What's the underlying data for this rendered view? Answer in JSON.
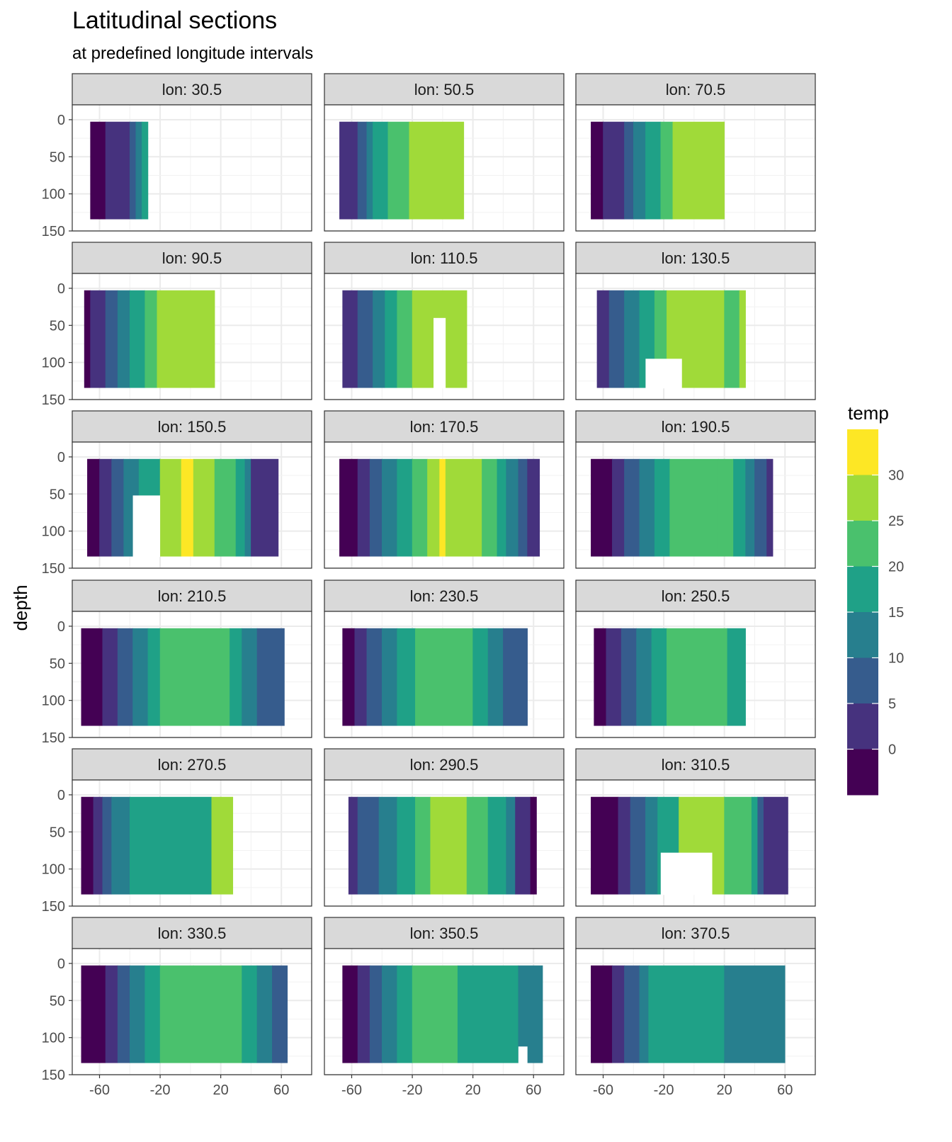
{
  "chart_data": {
    "type": "heatmap",
    "title": "Latitudinal sections",
    "subtitle": "at predefined longitude intervals",
    "xlabel": "",
    "ylabel": "depth",
    "x_ticks": [
      -60,
      -20,
      20,
      60
    ],
    "y_ticks": [
      0,
      50,
      100,
      150
    ],
    "xlim": [
      -78,
      80
    ],
    "ylim": [
      150,
      -20
    ],
    "legend": {
      "title": "temp",
      "breaks": [
        30,
        25,
        20,
        15,
        10,
        5,
        0
      ],
      "colors": [
        "#fde725",
        "#a0da39",
        "#4ac16d",
        "#1fa187",
        "#277f8e",
        "#365c8d",
        "#46327e",
        "#440154"
      ]
    },
    "panels": [
      {
        "label": "lon: 30.5",
        "lat_range": [
          -66,
          -28
        ],
        "depth_max": 134,
        "columns": [
          {
            "x": -66,
            "c": 7
          },
          {
            "x": -56,
            "c": 6
          },
          {
            "x": -40,
            "c": 5
          },
          {
            "x": -36,
            "c": 4
          },
          {
            "x": -32,
            "c": 3
          }
        ]
      },
      {
        "label": "lon: 50.5",
        "lat_range": [
          -68,
          14
        ],
        "depth_max": 134,
        "columns": [
          {
            "x": -68,
            "c": 6
          },
          {
            "x": -56,
            "c": 5
          },
          {
            "x": -50,
            "c": 4
          },
          {
            "x": -46,
            "c": 3
          },
          {
            "x": -36,
            "c": 2
          },
          {
            "x": -22,
            "c": 1
          }
        ]
      },
      {
        "label": "lon: 70.5",
        "lat_range": [
          -68,
          20
        ],
        "depth_max": 134,
        "columns": [
          {
            "x": -68,
            "c": 7
          },
          {
            "x": -60,
            "c": 6
          },
          {
            "x": -46,
            "c": 5
          },
          {
            "x": -40,
            "c": 4
          },
          {
            "x": -32,
            "c": 3
          },
          {
            "x": -22,
            "c": 2
          },
          {
            "x": -14,
            "c": 1
          }
        ]
      },
      {
        "label": "lon: 90.5",
        "lat_range": [
          -70,
          16
        ],
        "depth_max": 134,
        "columns": [
          {
            "x": -70,
            "c": 7
          },
          {
            "x": -66,
            "c": 6
          },
          {
            "x": -56,
            "c": 5
          },
          {
            "x": -48,
            "c": 4
          },
          {
            "x": -40,
            "c": 3
          },
          {
            "x": -30,
            "c": 2
          },
          {
            "x": -22,
            "c": 1
          }
        ]
      },
      {
        "label": "lon: 110.5",
        "lat_range": [
          -66,
          16
        ],
        "depth_max": 134,
        "columns": [
          {
            "x": -66,
            "c": 6
          },
          {
            "x": -56,
            "c": 5
          },
          {
            "x": -46,
            "c": 4
          },
          {
            "x": -38,
            "c": 3
          },
          {
            "x": -30,
            "c": 2
          },
          {
            "x": -20,
            "c": 1
          }
        ],
        "blank": {
          "lat": [
            -6,
            2
          ],
          "depth": [
            40,
            134
          ]
        }
      },
      {
        "label": "lon: 130.5",
        "lat_range": [
          -64,
          34
        ],
        "depth_max": 134,
        "columns": [
          {
            "x": -64,
            "c": 6
          },
          {
            "x": -56,
            "c": 5
          },
          {
            "x": -46,
            "c": 4
          },
          {
            "x": -36,
            "c": 3
          },
          {
            "x": -26,
            "c": 2
          },
          {
            "x": -18,
            "c": 1
          },
          {
            "x": 20,
            "c": 2
          },
          {
            "x": 30,
            "c": 1
          }
        ],
        "blank": {
          "lat": [
            -32,
            -8
          ],
          "depth": [
            95,
            134
          ]
        }
      },
      {
        "label": "lon: 150.5",
        "lat_range": [
          -68,
          58
        ],
        "depth_max": 134,
        "columns": [
          {
            "x": -68,
            "c": 7
          },
          {
            "x": -60,
            "c": 6
          },
          {
            "x": -52,
            "c": 5
          },
          {
            "x": -44,
            "c": 4
          },
          {
            "x": -34,
            "c": 3
          },
          {
            "x": -20,
            "c": 1
          },
          {
            "x": -6,
            "c": 0
          },
          {
            "x": 2,
            "c": 1
          },
          {
            "x": 16,
            "c": 2
          },
          {
            "x": 30,
            "c": 3
          },
          {
            "x": 36,
            "c": 4
          },
          {
            "x": 40,
            "c": 6
          }
        ],
        "blank": {
          "lat": [
            -38,
            -20
          ],
          "depth": [
            52,
            134
          ]
        }
      },
      {
        "label": "lon: 170.5",
        "lat_range": [
          -68,
          64
        ],
        "depth_max": 134,
        "columns": [
          {
            "x": -68,
            "c": 7
          },
          {
            "x": -56,
            "c": 6
          },
          {
            "x": -48,
            "c": 5
          },
          {
            "x": -40,
            "c": 4
          },
          {
            "x": -30,
            "c": 3
          },
          {
            "x": -20,
            "c": 2
          },
          {
            "x": -10,
            "c": 1
          },
          {
            "x": -2,
            "c": 0
          },
          {
            "x": 2,
            "c": 1
          },
          {
            "x": 26,
            "c": 2
          },
          {
            "x": 36,
            "c": 3
          },
          {
            "x": 42,
            "c": 4
          },
          {
            "x": 50,
            "c": 5
          },
          {
            "x": 56,
            "c": 6
          }
        ]
      },
      {
        "label": "lon: 190.5",
        "lat_range": [
          -68,
          52
        ],
        "depth_max": 134,
        "columns": [
          {
            "x": -68,
            "c": 7
          },
          {
            "x": -54,
            "c": 6
          },
          {
            "x": -46,
            "c": 5
          },
          {
            "x": -36,
            "c": 4
          },
          {
            "x": -26,
            "c": 3
          },
          {
            "x": -16,
            "c": 2
          },
          {
            "x": 16,
            "c": 2
          },
          {
            "x": 26,
            "c": 3
          },
          {
            "x": 34,
            "c": 4
          },
          {
            "x": 40,
            "c": 5
          },
          {
            "x": 48,
            "c": 6
          }
        ]
      },
      {
        "label": "lon: 210.5",
        "lat_range": [
          -72,
          62
        ],
        "depth_max": 134,
        "columns": [
          {
            "x": -72,
            "c": 7
          },
          {
            "x": -58,
            "c": 6
          },
          {
            "x": -48,
            "c": 5
          },
          {
            "x": -38,
            "c": 4
          },
          {
            "x": -28,
            "c": 3
          },
          {
            "x": -20,
            "c": 2
          },
          {
            "x": 26,
            "c": 3
          },
          {
            "x": 34,
            "c": 4
          },
          {
            "x": 44,
            "c": 5
          }
        ]
      },
      {
        "label": "lon: 230.5",
        "lat_range": [
          -66,
          56
        ],
        "depth_max": 134,
        "columns": [
          {
            "x": -66,
            "c": 7
          },
          {
            "x": -58,
            "c": 6
          },
          {
            "x": -50,
            "c": 5
          },
          {
            "x": -40,
            "c": 4
          },
          {
            "x": -30,
            "c": 3
          },
          {
            "x": -18,
            "c": 2
          },
          {
            "x": 20,
            "c": 3
          },
          {
            "x": 30,
            "c": 4
          },
          {
            "x": 40,
            "c": 5
          }
        ]
      },
      {
        "label": "lon: 250.5",
        "lat_range": [
          -66,
          34
        ],
        "depth_max": 134,
        "columns": [
          {
            "x": -66,
            "c": 7
          },
          {
            "x": -58,
            "c": 6
          },
          {
            "x": -48,
            "c": 5
          },
          {
            "x": -38,
            "c": 4
          },
          {
            "x": -28,
            "c": 3
          },
          {
            "x": -18,
            "c": 2
          },
          {
            "x": 22,
            "c": 3
          }
        ]
      },
      {
        "label": "lon: 270.5",
        "lat_range": [
          -72,
          28
        ],
        "depth_max": 134,
        "columns": [
          {
            "x": -72,
            "c": 7
          },
          {
            "x": -64,
            "c": 6
          },
          {
            "x": -58,
            "c": 5
          },
          {
            "x": -52,
            "c": 4
          },
          {
            "x": -40,
            "c": 3
          },
          {
            "x": 14,
            "c": 1
          }
        ]
      },
      {
        "label": "lon: 290.5",
        "lat_range": [
          -62,
          62
        ],
        "depth_max": 134,
        "columns": [
          {
            "x": -62,
            "c": 6
          },
          {
            "x": -56,
            "c": 5
          },
          {
            "x": -42,
            "c": 4
          },
          {
            "x": -30,
            "c": 3
          },
          {
            "x": -18,
            "c": 2
          },
          {
            "x": -8,
            "c": 1
          },
          {
            "x": 16,
            "c": 2
          },
          {
            "x": 30,
            "c": 3
          },
          {
            "x": 42,
            "c": 4
          },
          {
            "x": 48,
            "c": 6
          },
          {
            "x": 58,
            "c": 7
          }
        ]
      },
      {
        "label": "lon: 310.5",
        "lat_range": [
          -68,
          62
        ],
        "depth_max": 134,
        "columns": [
          {
            "x": -68,
            "c": 7
          },
          {
            "x": -50,
            "c": 6
          },
          {
            "x": -42,
            "c": 5
          },
          {
            "x": -32,
            "c": 4
          },
          {
            "x": -24,
            "c": 3
          },
          {
            "x": -10,
            "c": 1
          },
          {
            "x": 20,
            "c": 2
          },
          {
            "x": 38,
            "c": 3
          },
          {
            "x": 42,
            "c": 5
          },
          {
            "x": 46,
            "c": 6
          }
        ],
        "blank": {
          "lat": [
            -22,
            12
          ],
          "depth": [
            78,
            134
          ]
        }
      },
      {
        "label": "lon: 330.5",
        "lat_range": [
          -72,
          64
        ],
        "depth_max": 134,
        "columns": [
          {
            "x": -72,
            "c": 7
          },
          {
            "x": -56,
            "c": 6
          },
          {
            "x": -48,
            "c": 5
          },
          {
            "x": -40,
            "c": 4
          },
          {
            "x": -30,
            "c": 3
          },
          {
            "x": -20,
            "c": 2
          },
          {
            "x": 2,
            "c": 2
          },
          {
            "x": 34,
            "c": 3
          },
          {
            "x": 44,
            "c": 4
          },
          {
            "x": 54,
            "c": 5
          }
        ]
      },
      {
        "label": "lon: 350.5",
        "lat_range": [
          -66,
          66
        ],
        "depth_max": 134,
        "columns": [
          {
            "x": -66,
            "c": 7
          },
          {
            "x": -56,
            "c": 6
          },
          {
            "x": -48,
            "c": 5
          },
          {
            "x": -40,
            "c": 4
          },
          {
            "x": -30,
            "c": 3
          },
          {
            "x": -20,
            "c": 2
          },
          {
            "x": 10,
            "c": 3
          },
          {
            "x": 50,
            "c": 4
          }
        ],
        "blank": {
          "lat": [
            50,
            56
          ],
          "depth": [
            112,
            134
          ]
        }
      },
      {
        "label": "lon: 370.5",
        "lat_range": [
          -68,
          60
        ],
        "depth_max": 134,
        "columns": [
          {
            "x": -68,
            "c": 7
          },
          {
            "x": -54,
            "c": 6
          },
          {
            "x": -46,
            "c": 5
          },
          {
            "x": -36,
            "c": 4
          },
          {
            "x": -30,
            "c": 3
          },
          {
            "x": 20,
            "c": 4
          }
        ]
      }
    ]
  }
}
